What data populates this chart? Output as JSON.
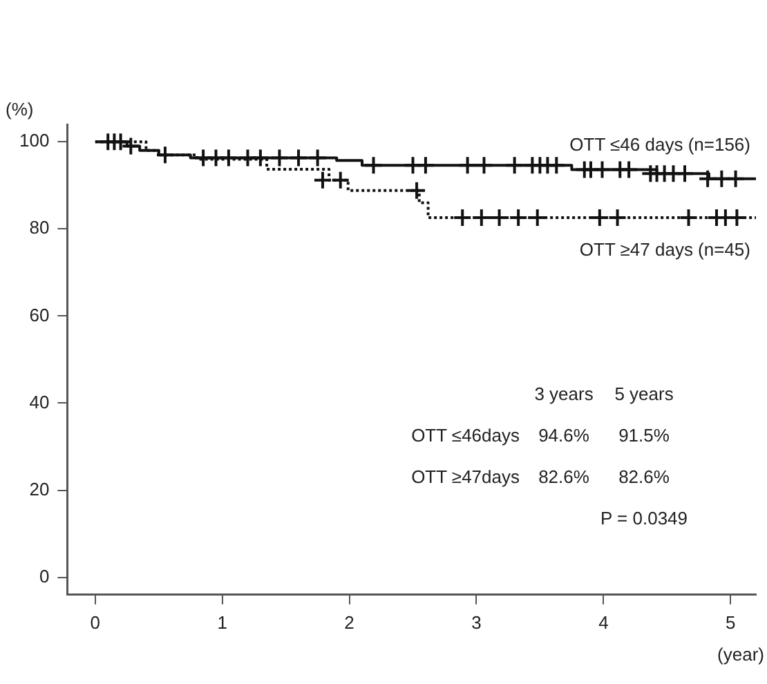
{
  "chart_data": {
    "type": "step",
    "ylabel": "(%)",
    "xlabel": "(year)",
    "xlim": [
      -0.22,
      5.2
    ],
    "ylim": [
      -4,
      104
    ],
    "xticks": [
      0,
      1,
      2,
      3,
      4,
      5
    ],
    "yticks": [
      0,
      20,
      40,
      60,
      80,
      100
    ],
    "grid": false,
    "legend": false,
    "marker": "none",
    "series": [
      {
        "name": "OTT ≤46 days (n=156)",
        "color": "#111111",
        "line_style": "solid",
        "x": [
          0,
          0.25,
          0.35,
          0.5,
          0.75,
          1.9,
          2.1,
          3.75,
          4.42,
          4.83,
          5.2
        ],
        "values": [
          100,
          99,
          98,
          97,
          96.3,
          95.7,
          94.6,
          93.6,
          92.7,
          91.5,
          91.5
        ]
      },
      {
        "name": "OTT ≥47 days (n=45)",
        "color": "#111111",
        "line_style": "dotted",
        "x": [
          0,
          0.3,
          0.4,
          0.5,
          0.8,
          1.35,
          1.84,
          1.99,
          2.55,
          2.62,
          5.2
        ],
        "values": [
          100,
          100,
          98,
          97,
          96,
          93.7,
          91.2,
          88.8,
          86,
          82.6,
          82.6
        ]
      },
      {
        "type": "scatter",
        "marker": "cross",
        "color": "#111111",
        "x": [
          0.1,
          0.15,
          0.2,
          0.28,
          0.55,
          0.85,
          0.95,
          1.05,
          1.2,
          1.3,
          1.45,
          1.6,
          1.75,
          2.19,
          2.5,
          2.6,
          2.93,
          3.06,
          3.3,
          3.44,
          3.5,
          3.56,
          3.63,
          3.85,
          3.9,
          3.99,
          4.13,
          4.2,
          4.37,
          4.42,
          4.48,
          4.55,
          4.64,
          4.82,
          4.93,
          5.04
        ],
        "values": [
          100,
          100,
          100,
          99,
          97,
          96.3,
          96.3,
          96.3,
          96.3,
          96.3,
          96.3,
          96.3,
          96.3,
          94.6,
          94.6,
          94.6,
          94.6,
          94.6,
          94.6,
          94.6,
          94.6,
          94.6,
          94.6,
          93.6,
          93.6,
          93.6,
          93.6,
          93.6,
          92.7,
          92.7,
          92.7,
          92.7,
          92.7,
          91.5,
          91.5,
          91.5
        ]
      },
      {
        "type": "scatter",
        "marker": "cross",
        "color": "#111111",
        "x": [
          1.79,
          1.93,
          2.53,
          2.89,
          3.04,
          3.18,
          3.33,
          3.48,
          3.97,
          4.11,
          4.67,
          4.89,
          4.96,
          5.05
        ],
        "values": [
          91.2,
          91.2,
          88.8,
          82.6,
          82.6,
          82.6,
          82.6,
          82.6,
          82.6,
          82.6,
          82.6,
          82.6,
          82.6,
          82.6
        ]
      }
    ],
    "annotations": [
      "3 years",
      "5 years",
      "OTT ≤46days",
      "94.6%",
      "91.5%",
      "OTT ≥47days",
      "82.6%",
      "82.6%",
      "P = 0.0349"
    ]
  }
}
